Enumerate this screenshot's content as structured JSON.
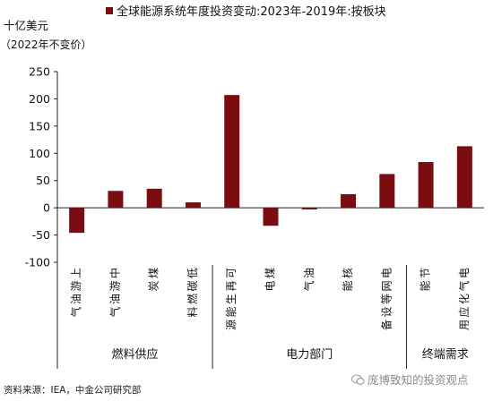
{
  "chart_data": {
    "type": "bar",
    "legend": "全球能源系统年度投资变动:2023年-2019年:按板块",
    "legend_position": "top",
    "ylabel": "十亿美元",
    "ylabel_unit": "（2022年不变价）",
    "ylim": [
      -100,
      250
    ],
    "yticks": [
      -100,
      -50,
      0,
      50,
      100,
      150,
      200,
      250
    ],
    "grid": false,
    "bar_color": "#7b0d12",
    "categories": [
      "上游油气",
      "中游油气",
      "煤炭",
      "低碳燃料",
      "可再生能源",
      "煤电",
      "油气",
      "核能",
      "电网等设备",
      "节能",
      "电气化应用"
    ],
    "values": [
      -46,
      31,
      35,
      10,
      207,
      -33,
      -3,
      25,
      62,
      84,
      113
    ],
    "groups": [
      {
        "label": "燃料供应",
        "start": 0,
        "end": 3
      },
      {
        "label": "电力部门",
        "start": 4,
        "end": 8
      },
      {
        "label": "终端需求",
        "start": 9,
        "end": 10
      }
    ]
  },
  "source_note": "资料来源：IEA，中金公司研究部",
  "watermark": "庞博致知的投资观点"
}
